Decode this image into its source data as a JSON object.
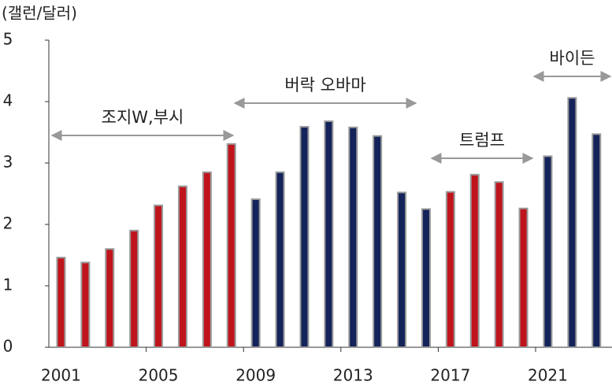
{
  "chart_data": {
    "type": "bar",
    "axis_label": "(갤런/달러)",
    "categories": [
      "2001",
      null,
      null,
      null,
      "2005",
      null,
      null,
      null,
      "2009",
      null,
      null,
      null,
      "2013",
      null,
      null,
      null,
      "2017",
      null,
      null,
      null,
      "2021",
      null,
      null
    ],
    "values": [
      1.46,
      1.38,
      1.6,
      1.9,
      2.31,
      2.62,
      2.85,
      3.31,
      2.41,
      2.85,
      3.59,
      3.68,
      3.58,
      3.44,
      2.52,
      2.25,
      2.53,
      2.81,
      2.69,
      2.26,
      3.11,
      4.06,
      3.47
    ],
    "colors": [
      "#c0141c",
      "#c0141c",
      "#c0141c",
      "#c0141c",
      "#c0141c",
      "#c0141c",
      "#c0141c",
      "#c0141c",
      "#14235a",
      "#14235a",
      "#14235a",
      "#14235a",
      "#14235a",
      "#14235a",
      "#14235a",
      "#14235a",
      "#c0141c",
      "#c0141c",
      "#c0141c",
      "#c0141c",
      "#14235a",
      "#14235a",
      "#14235a"
    ],
    "ylim": [
      0,
      5
    ],
    "yticks": [
      0,
      1,
      2,
      3,
      4,
      5
    ],
    "annotations": [
      "조지W,부시",
      "버락 오바마",
      "트럼프",
      "바이든"
    ]
  }
}
